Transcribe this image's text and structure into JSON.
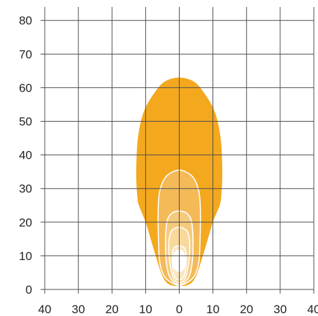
{
  "chart_data": {
    "type": "area",
    "title": "",
    "xlabel": "",
    "ylabel": "",
    "x_ticks": [
      "40",
      "30",
      "20",
      "10",
      "0",
      "10",
      "20",
      "30",
      "40"
    ],
    "y_ticks": [
      "0",
      "10",
      "20",
      "30",
      "40",
      "50",
      "60",
      "70",
      "80"
    ],
    "xlim": [
      -40,
      40
    ],
    "ylim": [
      0,
      84
    ],
    "grid": true,
    "legend": "none",
    "series": [
      {
        "color": "#f3a81e",
        "outline": [
          [
            0,
            1
          ],
          [
            3,
            1.5
          ],
          [
            5,
            4
          ],
          [
            7,
            10
          ],
          [
            8.5,
            15
          ],
          [
            10,
            20
          ],
          [
            12,
            25
          ],
          [
            12.5,
            28
          ],
          [
            12.8,
            35
          ],
          [
            12.3,
            45
          ],
          [
            10.5,
            53
          ],
          [
            7,
            59
          ],
          [
            4,
            62
          ],
          [
            0,
            63
          ],
          [
            -4,
            62
          ],
          [
            -7,
            59
          ],
          [
            -10.5,
            53
          ],
          [
            -12.3,
            45
          ],
          [
            -12.8,
            35
          ],
          [
            -12.5,
            28
          ],
          [
            -12,
            25
          ],
          [
            -10,
            20
          ],
          [
            -8.5,
            15
          ],
          [
            -7,
            10
          ],
          [
            -5,
            4
          ],
          [
            -3,
            1.5
          ]
        ]
      },
      {
        "color": "#f4ba58",
        "outline": [
          [
            0,
            1.2
          ],
          [
            2.3,
            2
          ],
          [
            4.5,
            4
          ],
          [
            5.8,
            8
          ],
          [
            6.2,
            15
          ],
          [
            6.2,
            26
          ],
          [
            5.3,
            31
          ],
          [
            3.5,
            34
          ],
          [
            0,
            35.5
          ],
          [
            -3.5,
            34
          ],
          [
            -5.3,
            31
          ],
          [
            -6.2,
            26
          ],
          [
            -6.2,
            15
          ],
          [
            -5.8,
            8
          ],
          [
            -4.5,
            4
          ],
          [
            -2.3,
            2
          ]
        ]
      },
      {
        "color": "#f6ca7d",
        "outline": [
          [
            0,
            1.5
          ],
          [
            2,
            2.5
          ],
          [
            3.3,
            5
          ],
          [
            4,
            10
          ],
          [
            4,
            17
          ],
          [
            3.4,
            21
          ],
          [
            2,
            22.8
          ],
          [
            0,
            23.3
          ],
          [
            -2,
            22.8
          ],
          [
            -3.4,
            21
          ],
          [
            -4,
            17
          ],
          [
            -4,
            10
          ],
          [
            -3.3,
            5
          ],
          [
            -2,
            2.5
          ]
        ]
      },
      {
        "color": "#f8d89b",
        "outline": [
          [
            0,
            2
          ],
          [
            1.6,
            3
          ],
          [
            2.5,
            6
          ],
          [
            3.1,
            11
          ],
          [
            3,
            15
          ],
          [
            2.2,
            17.5
          ],
          [
            0,
            18.5
          ],
          [
            -2.2,
            17.5
          ],
          [
            -3,
            15
          ],
          [
            -3.1,
            11
          ],
          [
            -2.5,
            6
          ],
          [
            -1.6,
            3
          ]
        ]
      },
      {
        "color": "#fae6c0",
        "outline": [
          [
            0,
            2.8
          ],
          [
            1.4,
            3.8
          ],
          [
            2,
            7
          ],
          [
            2.1,
            10
          ],
          [
            1.6,
            12.3
          ],
          [
            0,
            13
          ],
          [
            -1.6,
            12.3
          ],
          [
            -2.1,
            10
          ],
          [
            -2,
            7
          ],
          [
            -1.4,
            3.8
          ]
        ]
      },
      {
        "color": "#ffffff",
        "outline": [
          [
            0,
            5.3
          ],
          [
            1,
            5.8
          ],
          [
            1.6,
            7
          ],
          [
            1.8,
            8.5
          ],
          [
            1.6,
            10.2
          ],
          [
            1,
            11.3
          ],
          [
            0,
            11.7
          ],
          [
            -1,
            11.3
          ],
          [
            -1.6,
            10.2
          ],
          [
            -1.8,
            8.5
          ],
          [
            -1.6,
            7
          ],
          [
            -1,
            5.8
          ]
        ]
      }
    ]
  }
}
